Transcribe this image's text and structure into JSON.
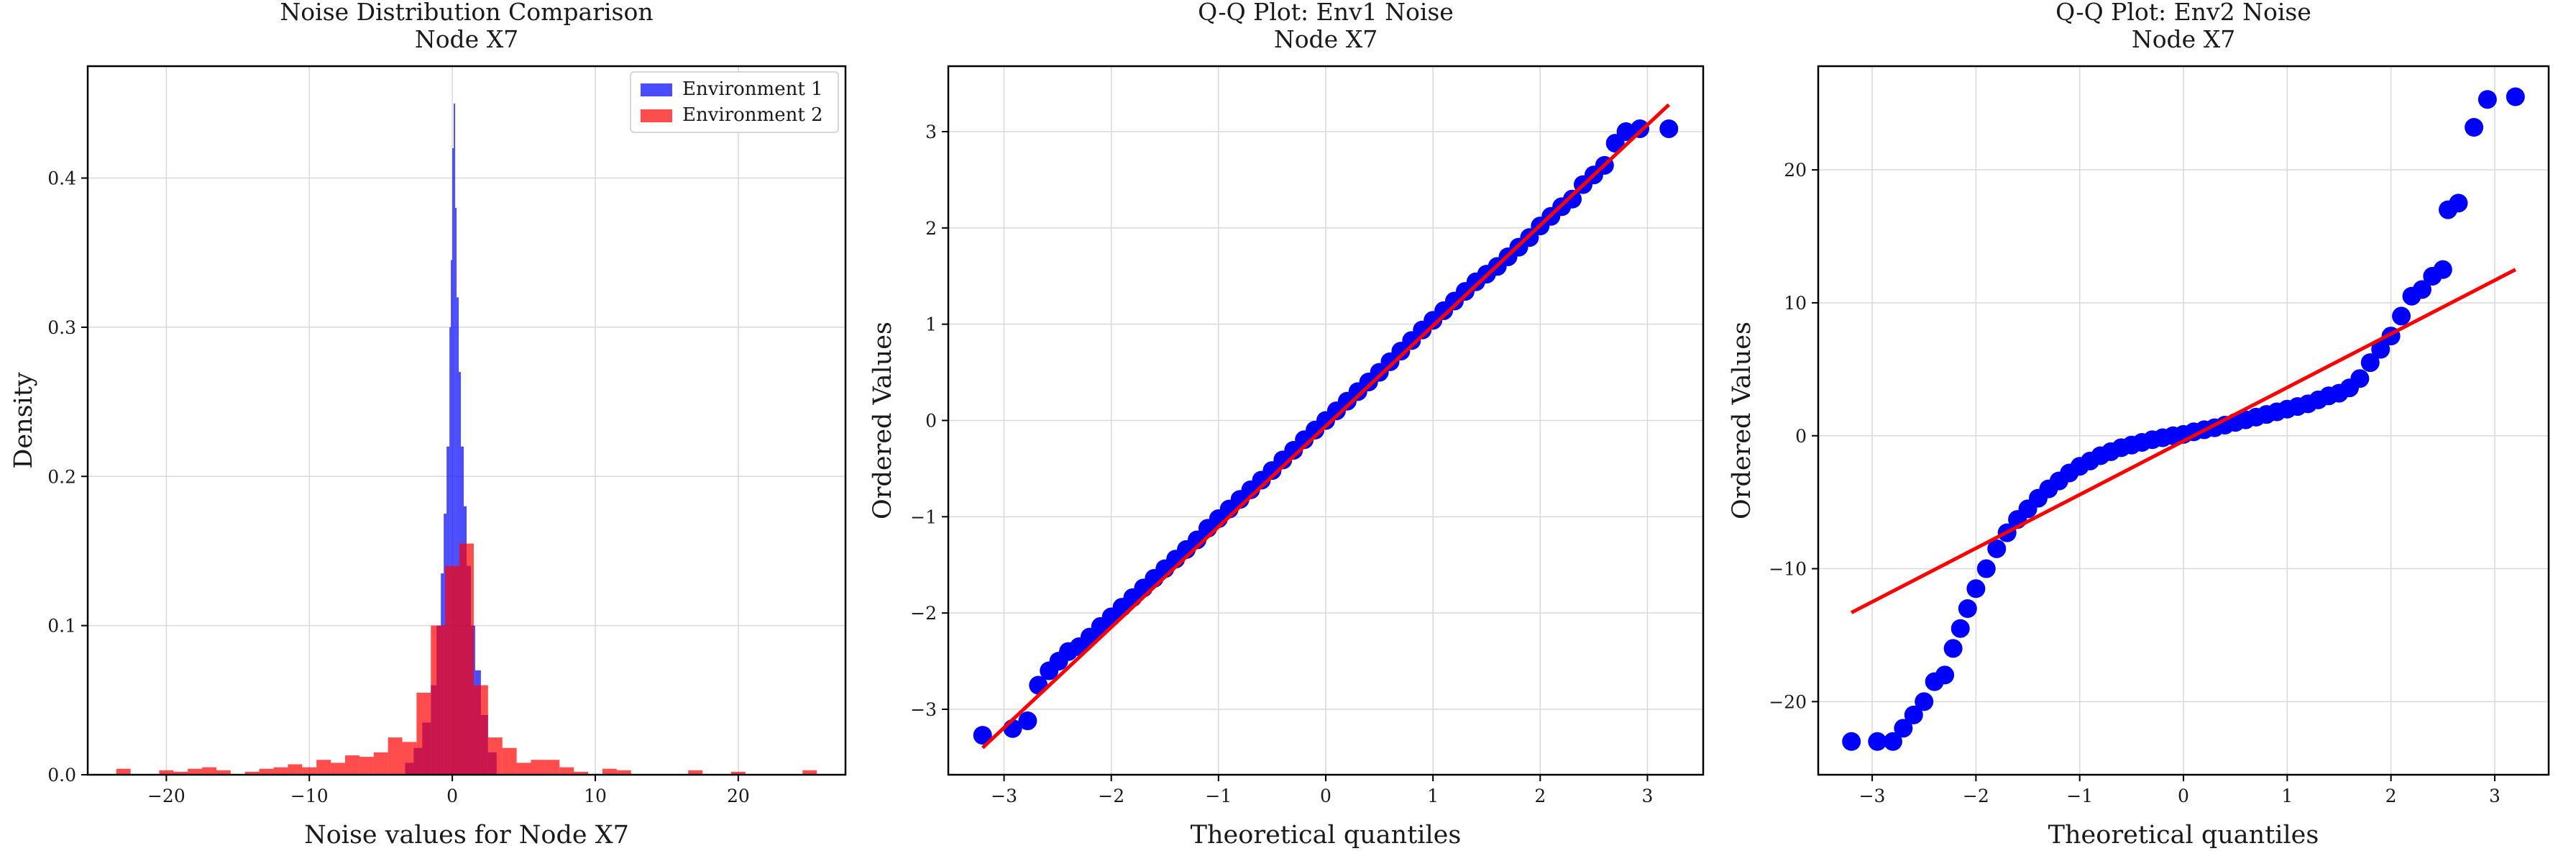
{
  "chart_data": [
    {
      "type": "bar",
      "title_lines": [
        "Noise Distribution Comparison",
        "Node X7"
      ],
      "xlabel": "Noise values for Node X7",
      "ylabel": "Density",
      "xlim": [
        -25.5,
        27.5
      ],
      "ylim": [
        0,
        0.475
      ],
      "xticks": [
        -20,
        -10,
        0,
        10,
        20
      ],
      "yticks": [
        0.0,
        0.1,
        0.2,
        0.3,
        0.4
      ],
      "grid": true,
      "legend_position": "top-right",
      "series": [
        {
          "name": "Environment 1",
          "color": "#0000ff",
          "opacity": 0.7,
          "bins": [
            [
              -3.3,
              -2.7,
              0.008
            ],
            [
              -2.7,
              -2.1,
              0.018
            ],
            [
              -2.1,
              -1.5,
              0.035
            ],
            [
              -1.5,
              -1.1,
              0.06
            ],
            [
              -1.1,
              -0.8,
              0.1
            ],
            [
              -0.8,
              -0.6,
              0.135
            ],
            [
              -0.6,
              -0.4,
              0.175
            ],
            [
              -0.4,
              -0.2,
              0.22
            ],
            [
              -0.2,
              -0.1,
              0.3
            ],
            [
              -0.1,
              0.0,
              0.345
            ],
            [
              0.0,
              0.1,
              0.42
            ],
            [
              0.1,
              0.2,
              0.45
            ],
            [
              0.2,
              0.3,
              0.38
            ],
            [
              0.3,
              0.45,
              0.32
            ],
            [
              0.45,
              0.6,
              0.27
            ],
            [
              0.6,
              0.8,
              0.22
            ],
            [
              0.8,
              1.0,
              0.18
            ],
            [
              1.0,
              1.3,
              0.14
            ],
            [
              1.3,
              1.6,
              0.1
            ],
            [
              1.6,
              2.0,
              0.07
            ],
            [
              2.0,
              2.5,
              0.04
            ],
            [
              2.5,
              3.1,
              0.015
            ]
          ]
        },
        {
          "name": "Environment 2",
          "color": "#ff0000",
          "opacity": 0.7,
          "bins": [
            [
              -23.5,
              -22.5,
              0.004
            ],
            [
              -20.5,
              -19.5,
              0.003
            ],
            [
              -19.5,
              -18.5,
              0.002
            ],
            [
              -18.5,
              -17.5,
              0.004
            ],
            [
              -17.5,
              -16.5,
              0.005
            ],
            [
              -16.5,
              -15.5,
              0.003
            ],
            [
              -14.5,
              -13.5,
              0.002
            ],
            [
              -13.5,
              -12.5,
              0.004
            ],
            [
              -12.5,
              -11.5,
              0.005
            ],
            [
              -11.5,
              -10.5,
              0.007
            ],
            [
              -10.5,
              -9.5,
              0.005
            ],
            [
              -9.5,
              -8.5,
              0.01
            ],
            [
              -8.5,
              -7.5,
              0.008
            ],
            [
              -7.5,
              -6.5,
              0.013
            ],
            [
              -6.5,
              -5.5,
              0.012
            ],
            [
              -5.5,
              -4.5,
              0.015
            ],
            [
              -4.5,
              -3.5,
              0.025
            ],
            [
              -3.5,
              -2.5,
              0.022
            ],
            [
              -2.5,
              -1.5,
              0.055
            ],
            [
              -1.5,
              -0.5,
              0.1
            ],
            [
              -0.5,
              0.5,
              0.14
            ],
            [
              0.5,
              1.5,
              0.155
            ],
            [
              1.5,
              2.5,
              0.06
            ],
            [
              2.5,
              3.5,
              0.025
            ],
            [
              3.5,
              4.5,
              0.018
            ],
            [
              4.5,
              5.5,
              0.008
            ],
            [
              5.5,
              6.5,
              0.01
            ],
            [
              6.5,
              7.5,
              0.01
            ],
            [
              7.5,
              8.5,
              0.005
            ],
            [
              8.5,
              9.5,
              0.002
            ],
            [
              10.5,
              11.5,
              0.004
            ],
            [
              11.5,
              12.5,
              0.003
            ],
            [
              16.5,
              17.5,
              0.003
            ],
            [
              19.5,
              20.5,
              0.002
            ],
            [
              24.5,
              25.5,
              0.003
            ]
          ]
        }
      ]
    },
    {
      "type": "scatter",
      "title_lines": [
        "Q-Q Plot: Env1 Noise",
        "Node X7"
      ],
      "xlabel": "Theoretical quantiles",
      "ylabel": "Ordered Values",
      "xlim": [
        -3.52,
        3.52
      ],
      "ylim": [
        -3.68,
        3.68
      ],
      "xticks": [
        -3,
        -2,
        -1,
        0,
        1,
        2,
        3
      ],
      "yticks": [
        -3,
        -2,
        -1,
        0,
        1,
        2,
        3
      ],
      "grid": true,
      "point_color": "#0000ff",
      "line_color": "#ff0000",
      "fit_line": [
        [
          -3.2,
          -3.4
        ],
        [
          3.2,
          3.28
        ]
      ],
      "points": [
        [
          -3.2,
          -3.27
        ],
        [
          -2.92,
          -3.2
        ],
        [
          -2.78,
          -3.12
        ],
        [
          -2.68,
          -2.75
        ],
        [
          -2.58,
          -2.6
        ],
        [
          -2.49,
          -2.5
        ],
        [
          -2.4,
          -2.4
        ],
        [
          -2.3,
          -2.35
        ],
        [
          -2.2,
          -2.25
        ],
        [
          -2.1,
          -2.14
        ],
        [
          -2.0,
          -2.04
        ],
        [
          -1.9,
          -1.94
        ],
        [
          -1.8,
          -1.84
        ],
        [
          -1.7,
          -1.74
        ],
        [
          -1.6,
          -1.64
        ],
        [
          -1.5,
          -1.54
        ],
        [
          -1.4,
          -1.44
        ],
        [
          -1.3,
          -1.34
        ],
        [
          -1.2,
          -1.24
        ],
        [
          -1.1,
          -1.12
        ],
        [
          -1.0,
          -1.02
        ],
        [
          -0.9,
          -0.92
        ],
        [
          -0.8,
          -0.82
        ],
        [
          -0.7,
          -0.72
        ],
        [
          -0.6,
          -0.62
        ],
        [
          -0.5,
          -0.52
        ],
        [
          -0.4,
          -0.41
        ],
        [
          -0.3,
          -0.31
        ],
        [
          -0.2,
          -0.2
        ],
        [
          -0.1,
          -0.1
        ],
        [
          0.0,
          0.0
        ],
        [
          0.1,
          0.1
        ],
        [
          0.2,
          0.2
        ],
        [
          0.3,
          0.3
        ],
        [
          0.4,
          0.4
        ],
        [
          0.5,
          0.5
        ],
        [
          0.6,
          0.61
        ],
        [
          0.7,
          0.72
        ],
        [
          0.8,
          0.83
        ],
        [
          0.9,
          0.94
        ],
        [
          1.0,
          1.04
        ],
        [
          1.1,
          1.14
        ],
        [
          1.2,
          1.24
        ],
        [
          1.3,
          1.34
        ],
        [
          1.4,
          1.44
        ],
        [
          1.5,
          1.52
        ],
        [
          1.6,
          1.6
        ],
        [
          1.7,
          1.7
        ],
        [
          1.8,
          1.8
        ],
        [
          1.9,
          1.9
        ],
        [
          2.0,
          2.02
        ],
        [
          2.1,
          2.12
        ],
        [
          2.2,
          2.22
        ],
        [
          2.3,
          2.3
        ],
        [
          2.4,
          2.45
        ],
        [
          2.5,
          2.55
        ],
        [
          2.6,
          2.65
        ],
        [
          2.7,
          2.88
        ],
        [
          2.8,
          3.0
        ],
        [
          2.93,
          3.03
        ],
        [
          3.2,
          3.03
        ]
      ]
    },
    {
      "type": "scatter",
      "title_lines": [
        "Q-Q Plot: Env2 Noise",
        "Node X7"
      ],
      "xlabel": "Theoretical quantiles",
      "ylabel": "Ordered Values",
      "xlim": [
        -3.52,
        3.52
      ],
      "ylim": [
        -25.5,
        27.8
      ],
      "xticks": [
        -3,
        -2,
        -1,
        0,
        1,
        2,
        3
      ],
      "yticks": [
        -20,
        -10,
        0,
        10,
        20
      ],
      "grid": true,
      "point_color": "#0000ff",
      "line_color": "#ff0000",
      "fit_line": [
        [
          -3.2,
          -13.3
        ],
        [
          3.2,
          12.5
        ]
      ],
      "points": [
        [
          -3.2,
          -23.0
        ],
        [
          -2.95,
          -23.0
        ],
        [
          -2.8,
          -23.0
        ],
        [
          -2.7,
          -22.0
        ],
        [
          -2.6,
          -21.0
        ],
        [
          -2.5,
          -20.0
        ],
        [
          -2.4,
          -18.5
        ],
        [
          -2.3,
          -18.0
        ],
        [
          -2.22,
          -16.0
        ],
        [
          -2.15,
          -14.5
        ],
        [
          -2.08,
          -13.0
        ],
        [
          -2.0,
          -11.5
        ],
        [
          -1.9,
          -10.0
        ],
        [
          -1.8,
          -8.5
        ],
        [
          -1.7,
          -7.3
        ],
        [
          -1.6,
          -6.3
        ],
        [
          -1.5,
          -5.5
        ],
        [
          -1.4,
          -4.7
        ],
        [
          -1.3,
          -4.0
        ],
        [
          -1.2,
          -3.4
        ],
        [
          -1.1,
          -2.8
        ],
        [
          -1.0,
          -2.3
        ],
        [
          -0.9,
          -1.9
        ],
        [
          -0.8,
          -1.5
        ],
        [
          -0.7,
          -1.2
        ],
        [
          -0.6,
          -0.9
        ],
        [
          -0.5,
          -0.7
        ],
        [
          -0.4,
          -0.5
        ],
        [
          -0.3,
          -0.3
        ],
        [
          -0.2,
          -0.15
        ],
        [
          -0.1,
          0.0
        ],
        [
          0.0,
          0.1
        ],
        [
          0.1,
          0.3
        ],
        [
          0.2,
          0.45
        ],
        [
          0.3,
          0.6
        ],
        [
          0.4,
          0.8
        ],
        [
          0.5,
          1.0
        ],
        [
          0.6,
          1.2
        ],
        [
          0.7,
          1.4
        ],
        [
          0.8,
          1.6
        ],
        [
          0.9,
          1.8
        ],
        [
          1.0,
          2.0
        ],
        [
          1.1,
          2.2
        ],
        [
          1.2,
          2.4
        ],
        [
          1.3,
          2.7
        ],
        [
          1.4,
          3.0
        ],
        [
          1.5,
          3.2
        ],
        [
          1.6,
          3.6
        ],
        [
          1.7,
          4.3
        ],
        [
          1.8,
          5.5
        ],
        [
          1.9,
          6.5
        ],
        [
          2.0,
          7.5
        ],
        [
          2.1,
          9.0
        ],
        [
          2.2,
          10.5
        ],
        [
          2.3,
          11.0
        ],
        [
          2.4,
          12.0
        ],
        [
          2.5,
          12.5
        ],
        [
          2.55,
          17.0
        ],
        [
          2.65,
          17.5
        ],
        [
          2.8,
          23.2
        ],
        [
          2.93,
          25.3
        ],
        [
          3.2,
          25.5
        ]
      ]
    }
  ]
}
